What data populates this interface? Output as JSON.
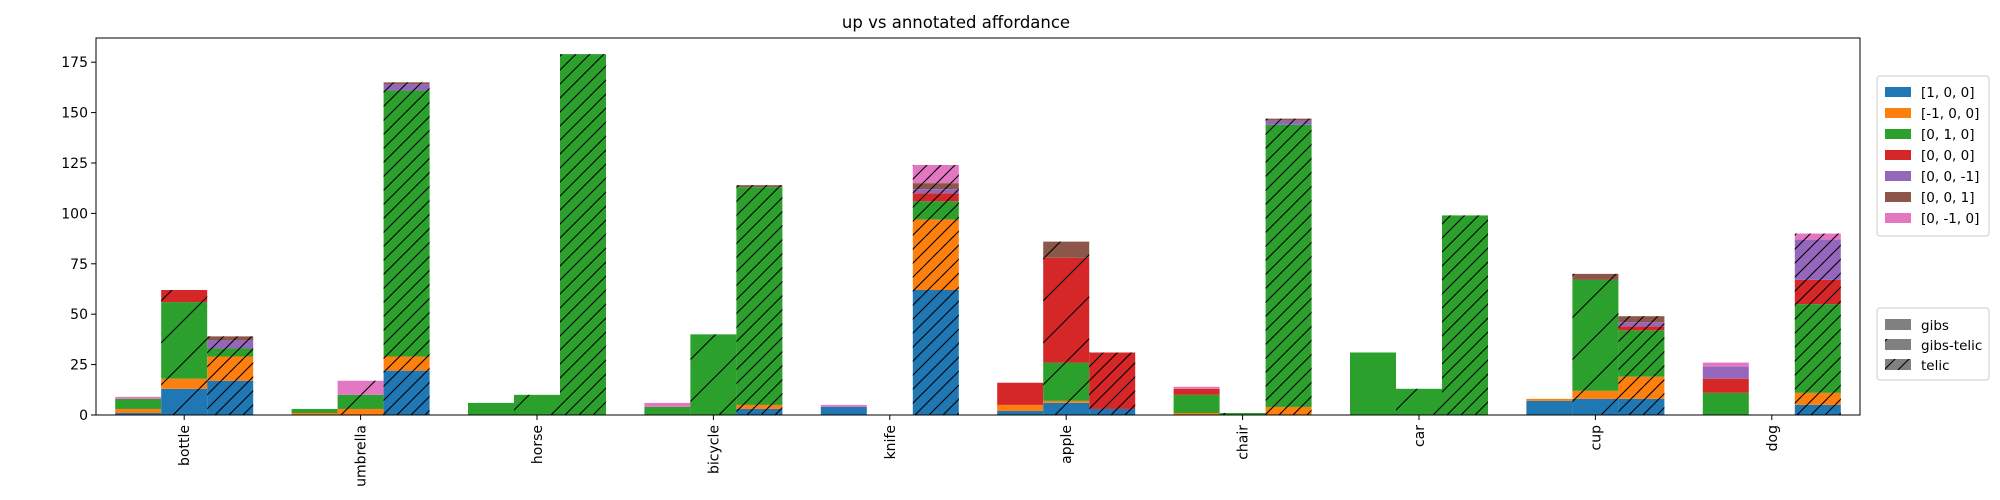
{
  "chart_data": {
    "type": "bar",
    "title": "up vs annotated affordance",
    "xlabel": "",
    "ylabel": "",
    "ylim": [
      0,
      187
    ],
    "yticks": [
      0,
      25,
      50,
      75,
      100,
      125,
      150,
      175
    ],
    "categories": [
      "bottle",
      "umbrella",
      "horse",
      "bicycle",
      "knife",
      "apple",
      "chair",
      "car",
      "cup",
      "dog"
    ],
    "groups": [
      "gibs",
      "gibs-telic",
      "telic"
    ],
    "group_hatches": [
      "none",
      "sparse",
      "dense"
    ],
    "series": [
      {
        "name": "[1, 0, 0]",
        "color": "#1f77b4",
        "values": [
          [
            1,
            13,
            17
          ],
          [
            0,
            0,
            22
          ],
          [
            0,
            0,
            0
          ],
          [
            0,
            0,
            3
          ],
          [
            4,
            0,
            62
          ],
          [
            2,
            6,
            3
          ],
          [
            0,
            0,
            0
          ],
          [
            0,
            0,
            0
          ],
          [
            7,
            8,
            8
          ],
          [
            0,
            0,
            5
          ]
        ]
      },
      {
        "name": "[-1, 0, 0]",
        "color": "#ff7f0e",
        "values": [
          [
            2,
            5,
            12
          ],
          [
            1,
            3,
            7
          ],
          [
            0,
            0,
            0
          ],
          [
            0,
            0,
            2
          ],
          [
            0,
            0,
            35
          ],
          [
            3,
            1,
            0
          ],
          [
            1,
            0,
            4
          ],
          [
            0,
            0,
            0
          ],
          [
            1,
            4,
            11
          ],
          [
            0,
            0,
            6
          ]
        ]
      },
      {
        "name": "[0, 1, 0]",
        "color": "#2ca02c",
        "values": [
          [
            5,
            38,
            4
          ],
          [
            2,
            7,
            132
          ],
          [
            6,
            10,
            179
          ],
          [
            4,
            40,
            108
          ],
          [
            0,
            0,
            9
          ],
          [
            0,
            19,
            0
          ],
          [
            9,
            1,
            140
          ],
          [
            31,
            13,
            99
          ],
          [
            0,
            55,
            23
          ],
          [
            11,
            0,
            44
          ]
        ]
      },
      {
        "name": "[0, 0, 0]",
        "color": "#d62728",
        "values": [
          [
            0,
            6,
            0
          ],
          [
            0,
            0,
            0
          ],
          [
            0,
            0,
            0
          ],
          [
            0,
            0,
            0
          ],
          [
            0,
            0,
            4
          ],
          [
            11,
            52,
            28
          ],
          [
            3,
            0,
            0
          ],
          [
            0,
            0,
            0
          ],
          [
            0,
            0,
            2
          ],
          [
            7,
            0,
            12
          ]
        ]
      },
      {
        "name": "[0, 0, -1]",
        "color": "#9467bd",
        "values": [
          [
            0,
            0,
            4
          ],
          [
            0,
            0,
            3
          ],
          [
            0,
            0,
            0
          ],
          [
            0,
            0,
            0
          ],
          [
            0,
            0,
            2
          ],
          [
            0,
            0,
            0
          ],
          [
            0,
            0,
            2
          ],
          [
            0,
            0,
            0
          ],
          [
            0,
            0,
            2
          ],
          [
            6,
            0,
            20
          ]
        ]
      },
      {
        "name": "[0, 0, 1]",
        "color": "#8c564b",
        "values": [
          [
            0,
            0,
            2
          ],
          [
            0,
            0,
            1
          ],
          [
            0,
            0,
            0
          ],
          [
            0,
            0,
            1
          ],
          [
            0,
            0,
            3
          ],
          [
            0,
            8,
            0
          ],
          [
            0,
            0,
            1
          ],
          [
            0,
            0,
            0
          ],
          [
            0,
            3,
            3
          ],
          [
            0,
            0,
            0
          ]
        ]
      },
      {
        "name": "[0, -1, 0]",
        "color": "#e377c2",
        "values": [
          [
            1,
            0,
            0
          ],
          [
            0,
            7,
            0
          ],
          [
            0,
            0,
            0
          ],
          [
            2,
            0,
            0
          ],
          [
            1,
            0,
            9
          ],
          [
            0,
            0,
            0
          ],
          [
            1,
            0,
            0
          ],
          [
            0,
            0,
            0
          ],
          [
            0,
            0,
            0
          ],
          [
            2,
            0,
            3
          ]
        ]
      }
    ],
    "legend_placement": "right",
    "grid": false
  }
}
